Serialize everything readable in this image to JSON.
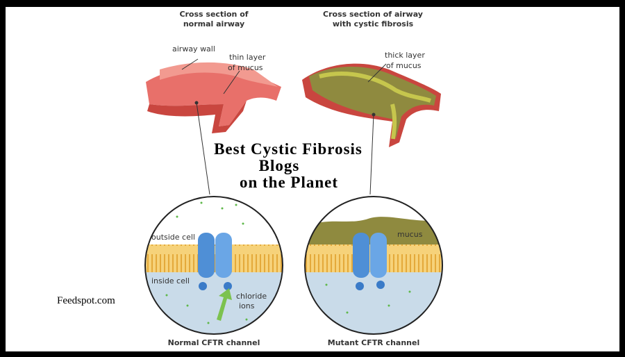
{
  "left_airway": {
    "title": [
      "Cross section of",
      "normal airway"
    ],
    "labels": {
      "wall": "airway wall",
      "mucus": [
        "thin layer",
        "of mucus"
      ]
    }
  },
  "right_airway": {
    "title": [
      "Cross section of airway",
      "with cystic fibrosis"
    ],
    "labels": {
      "mucus": [
        "thick layer",
        "of mucus"
      ]
    }
  },
  "headline": [
    "Best Cystic Fibrosis",
    "Blogs",
    "on the Planet"
  ],
  "left_cell": {
    "outside": "outside cell",
    "inside": "inside cell",
    "ions": [
      "chloride",
      "ions"
    ],
    "caption": "Normal CFTR channel"
  },
  "right_cell": {
    "mucus": "mucus",
    "caption": "Mutant CFTR channel"
  },
  "source": "Feedspot.com"
}
